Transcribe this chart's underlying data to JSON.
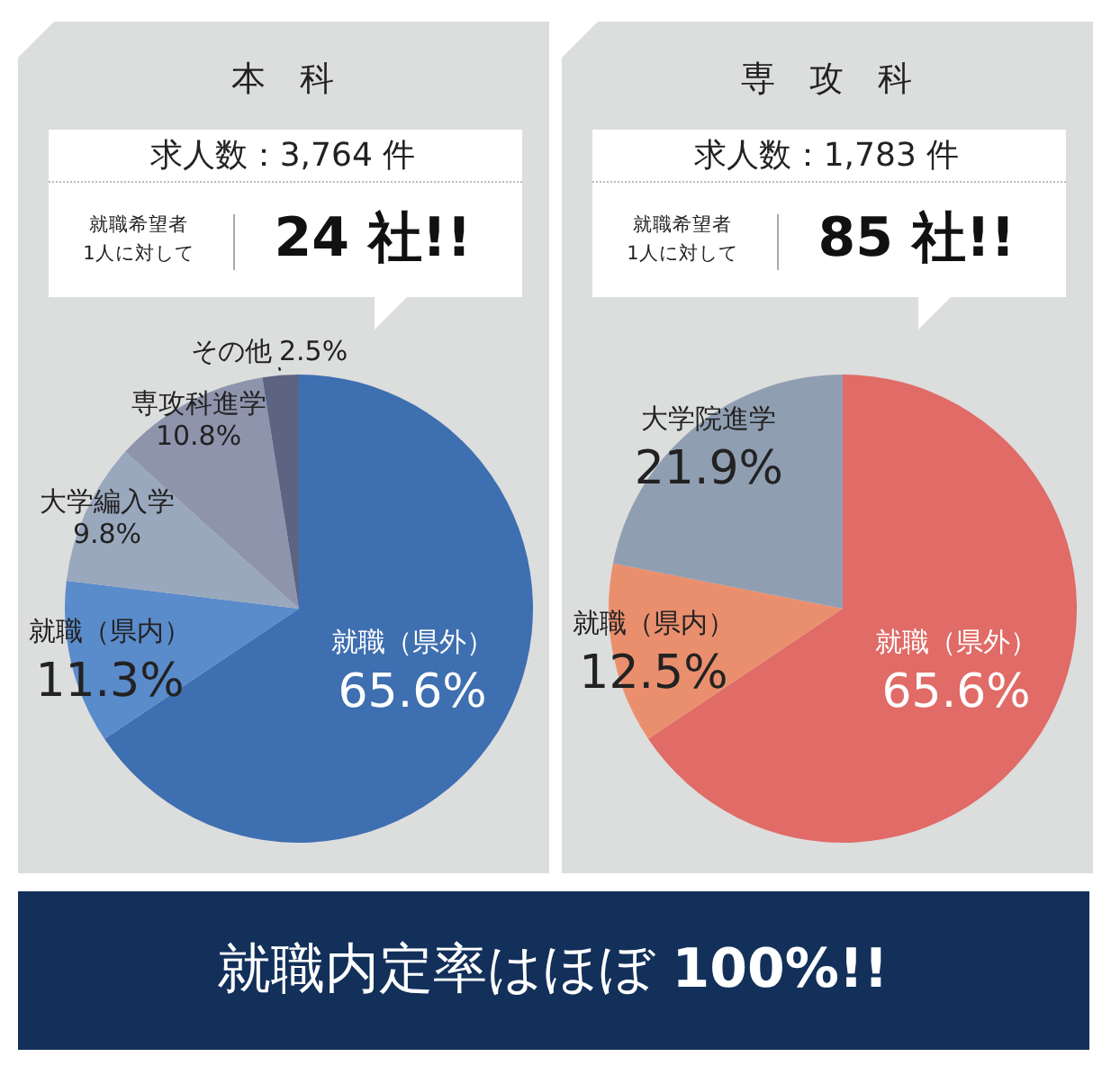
{
  "chart_data": [
    {
      "type": "pie",
      "title": "本　科",
      "annotations": [
        "求人数：3,764 件",
        "就職希望者",
        "1人に対して",
        "24 社!!"
      ],
      "value_labels": [
        "65.6%",
        "11.3%",
        "9.8%",
        "10.8%",
        "2.5%"
      ],
      "categories": [
        "就職（県外）",
        "就職（県内）",
        "大学編入学",
        "専攻科進学",
        "その他"
      ],
      "values": [
        65.6,
        11.3,
        9.8,
        10.8,
        2.5
      ],
      "colors": [
        "#3e6fb0",
        "#5a8bcb",
        "#9aa8bd",
        "#8f94ad",
        "#5c6482"
      ]
    },
    {
      "type": "pie",
      "title": "専　攻　科",
      "annotations": [
        "求人数：1,783 件",
        "就職希望者",
        "1人に対して",
        "85 社!!"
      ],
      "value_labels": [
        "65.6%",
        "12.5%",
        "21.9%"
      ],
      "categories": [
        "就職（県外）",
        "就職（県内）",
        "大学院進学"
      ],
      "values": [
        65.6,
        12.5,
        21.9
      ],
      "colors": [
        "#e06b67",
        "#ea8f6d",
        "#909eb2"
      ]
    },
    {
      "type": "other",
      "title": "就職内定率はほぼ **100%!!**"
    }
  ]
}
